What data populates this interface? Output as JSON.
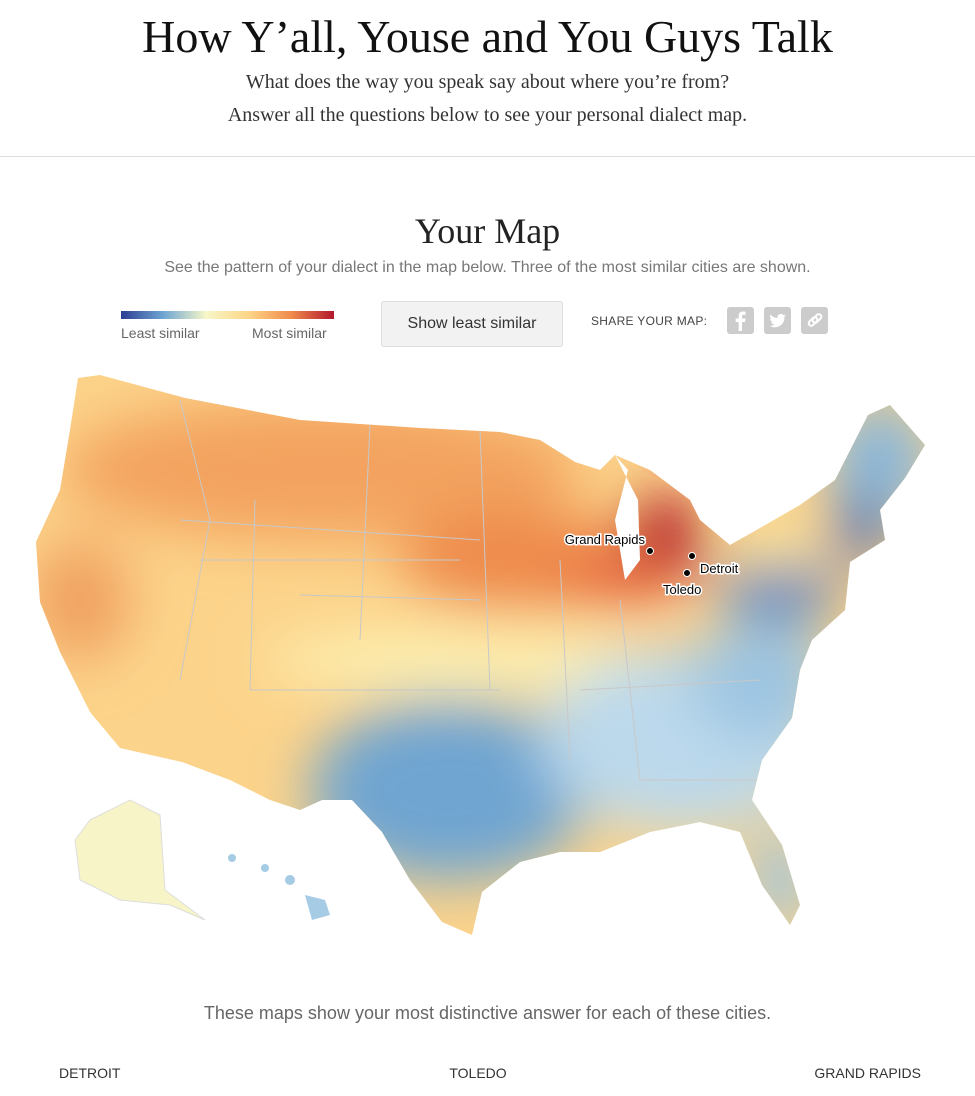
{
  "header": {
    "title": "How Y’all, Youse and You Guys Talk",
    "subtitle_lines": [
      "What does the way you speak say about where you’re from?",
      "Answer all the questions below to see your personal dialect map."
    ]
  },
  "map_section": {
    "title": "Your Map",
    "description": "See the pattern of your dialect in the map below. Three of the most similar cities are shown.",
    "legend": {
      "low_label": "Least similar",
      "high_label": "Most similar"
    },
    "button": "Show least similar",
    "share_label": "SHARE YOUR MAP:",
    "map_cities": [
      "Grand Rapids",
      "Detroit",
      "Toledo"
    ]
  },
  "cities_section": {
    "text": "These maps show your most distinctive answer for each of these cities.",
    "cities": [
      "DETROIT",
      "TOLEDO",
      "GRAND RAPIDS"
    ]
  }
}
